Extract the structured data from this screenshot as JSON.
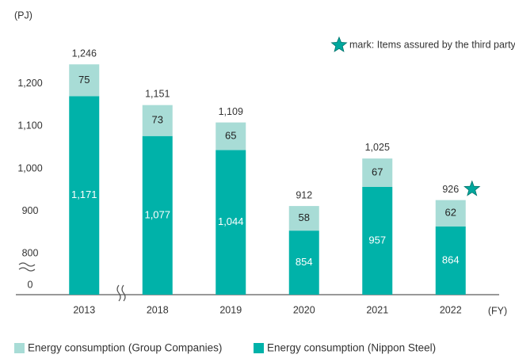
{
  "chart_data": {
    "type": "stacked_bar",
    "y_unit": "(PJ)",
    "x_unit": "(FY)",
    "note": "mark: Items assured by the third party",
    "categories": [
      "2013",
      "2018",
      "2019",
      "2020",
      "2021",
      "2022"
    ],
    "series": [
      {
        "name": "Energy consumption (Nippon Steel)",
        "color": "#00b2a9",
        "values": [
          1171,
          1077,
          1044,
          854,
          957,
          864
        ],
        "value_labels": [
          "1,171",
          "1,077",
          "1,044",
          "854",
          "957",
          "864"
        ]
      },
      {
        "name": "Energy consumption (Group Companies)",
        "color": "#a8dcd6",
        "values": [
          75,
          73,
          65,
          58,
          67,
          62
        ]
      }
    ],
    "totals": [
      1246,
      1151,
      1109,
      912,
      1025,
      926
    ],
    "total_labels": [
      "1,246",
      "1,151",
      "1,109",
      "912",
      "1,025",
      "926"
    ],
    "assured": [
      false,
      false,
      false,
      false,
      false,
      true
    ],
    "ylim": [
      703,
      1323
    ],
    "yticks": [
      0,
      800,
      900,
      {
        "value": 1000,
        "label": "1,000"
      },
      {
        "value": 1100,
        "label": "1,100"
      },
      {
        "value": 1200,
        "label": "1,200"
      }
    ],
    "axis_break": true,
    "grid": false
  }
}
